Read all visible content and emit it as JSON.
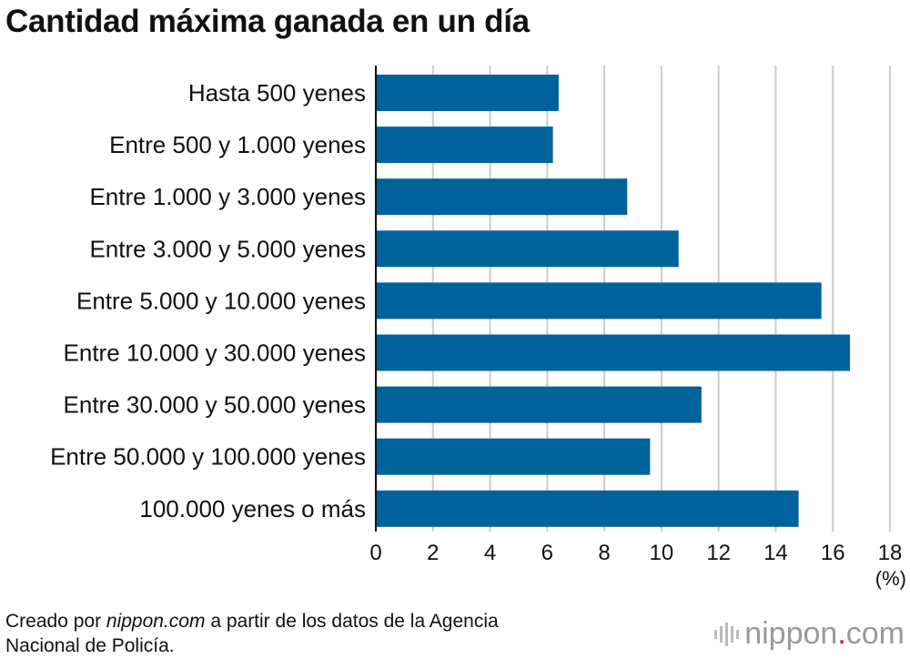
{
  "chart_data": {
    "type": "bar",
    "orientation": "horizontal",
    "title": "Cantidad máxima ganada en un día",
    "unit_label": "(%)",
    "categories": [
      "Hasta 500 yenes",
      "Entre 500 y 1.000 yenes",
      "Entre 1.000 y 3.000 yenes",
      "Entre 3.000 y 5.000 yenes",
      "Entre 5.000 y 10.000 yenes",
      "Entre 10.000 y 30.000 yenes",
      "Entre 30.000 y 50.000 yenes",
      "Entre 50.000 y 100.000 yenes",
      "100.000 yenes o más"
    ],
    "values": [
      6.4,
      6.2,
      8.8,
      10.6,
      15.6,
      16.6,
      11.4,
      9.6,
      14.8
    ],
    "xlim": [
      0,
      18
    ],
    "xticks": [
      0,
      2,
      4,
      6,
      8,
      10,
      12,
      14,
      16,
      18
    ],
    "grid": true,
    "bar_color": "#00629b",
    "grid_color": "#cccccc"
  },
  "source": {
    "prefix": "Creado por ",
    "site": "nippon.com",
    "line1_rest": " a partir de los datos de la Agencia",
    "line2": "Nacional de Policía."
  },
  "brand": {
    "name": "nippon",
    "dot": ".",
    "suffix": "com"
  }
}
